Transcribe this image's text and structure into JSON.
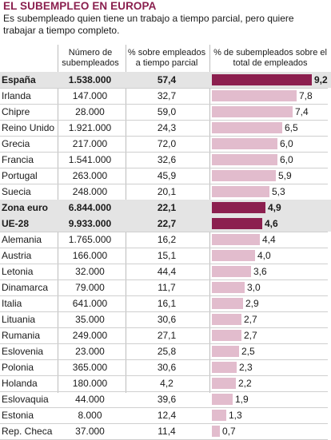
{
  "header": {
    "title": "EL SUBEMPLEO EN EUROPA",
    "subtitle": "Es subempleado quien tiene un trabajo a tiempo parcial, pero quiere trabajar a tiempo completo."
  },
  "colors": {
    "bar_default": "#e2bccd",
    "bar_highlight": "#8c1f4f",
    "row_highlight": "#e4e4e4"
  },
  "chart_data": {
    "type": "table",
    "columns": [
      "",
      "Número de subempleados",
      "% sobre empleados a tiempo parcial",
      "% de subempleados sobre el total de empleados"
    ],
    "bar_max": 9.2,
    "rows": [
      {
        "country": "España",
        "underemployed": "1.538.000",
        "pct_part_time": "57,4",
        "pct_total": "9,2",
        "value": 9.2,
        "highlight": true
      },
      {
        "country": "Irlanda",
        "underemployed": "147.000",
        "pct_part_time": "32,7",
        "pct_total": "7,8",
        "value": 7.8,
        "highlight": false
      },
      {
        "country": "Chipre",
        "underemployed": "28.000",
        "pct_part_time": "59,0",
        "pct_total": "7,4",
        "value": 7.4,
        "highlight": false
      },
      {
        "country": "Reino Unido",
        "underemployed": "1.921.000",
        "pct_part_time": "24,3",
        "pct_total": "6,5",
        "value": 6.5,
        "highlight": false
      },
      {
        "country": "Grecia",
        "underemployed": "217.000",
        "pct_part_time": "72,0",
        "pct_total": "6,0",
        "value": 6.0,
        "highlight": false
      },
      {
        "country": "Francia",
        "underemployed": "1.541.000",
        "pct_part_time": "32,6",
        "pct_total": "6,0",
        "value": 6.0,
        "highlight": false
      },
      {
        "country": "Portugal",
        "underemployed": "263.000",
        "pct_part_time": "45,9",
        "pct_total": "5,9",
        "value": 5.9,
        "highlight": false
      },
      {
        "country": "Suecia",
        "underemployed": "248.000",
        "pct_part_time": "20,1",
        "pct_total": "5,3",
        "value": 5.3,
        "highlight": false
      },
      {
        "country": "Zona euro",
        "underemployed": "6.844.000",
        "pct_part_time": "22,1",
        "pct_total": "4,9",
        "value": 4.9,
        "highlight": true
      },
      {
        "country": "UE-28",
        "underemployed": "9.933.000",
        "pct_part_time": "22,7",
        "pct_total": "4,6",
        "value": 4.6,
        "highlight": true
      },
      {
        "country": "Alemania",
        "underemployed": "1.765.000",
        "pct_part_time": "16,2",
        "pct_total": "4,4",
        "value": 4.4,
        "highlight": false
      },
      {
        "country": "Austria",
        "underemployed": "166.000",
        "pct_part_time": "15,1",
        "pct_total": "4,0",
        "value": 4.0,
        "highlight": false
      },
      {
        "country": "Letonia",
        "underemployed": "32.000",
        "pct_part_time": "44,4",
        "pct_total": "3,6",
        "value": 3.6,
        "highlight": false
      },
      {
        "country": "Dinamarca",
        "underemployed": "79.000",
        "pct_part_time": "11,7",
        "pct_total": "3,0",
        "value": 3.0,
        "highlight": false
      },
      {
        "country": "Italia",
        "underemployed": "641.000",
        "pct_part_time": "16,1",
        "pct_total": "2,9",
        "value": 2.9,
        "highlight": false
      },
      {
        "country": "Lituania",
        "underemployed": "35.000",
        "pct_part_time": "30,6",
        "pct_total": "2,7",
        "value": 2.7,
        "highlight": false
      },
      {
        "country": "Rumania",
        "underemployed": "249.000",
        "pct_part_time": "27,1",
        "pct_total": "2,7",
        "value": 2.7,
        "highlight": false
      },
      {
        "country": "Eslovenia",
        "underemployed": "23.000",
        "pct_part_time": "25,8",
        "pct_total": "2,5",
        "value": 2.5,
        "highlight": false
      },
      {
        "country": "Polonia",
        "underemployed": "365.000",
        "pct_part_time": "30,6",
        "pct_total": "2,3",
        "value": 2.3,
        "highlight": false
      },
      {
        "country": "Holanda",
        "underemployed": "180.000",
        "pct_part_time": "4,2",
        "pct_total": "2,2",
        "value": 2.2,
        "highlight": false
      },
      {
        "country": "Eslovaquia",
        "underemployed": "44.000",
        "pct_part_time": "39,6",
        "pct_total": "1,9",
        "value": 1.9,
        "highlight": false
      },
      {
        "country": "Estonia",
        "underemployed": "8.000",
        "pct_part_time": "12,4",
        "pct_total": "1,3",
        "value": 1.3,
        "highlight": false
      },
      {
        "country": "Rep. Checa",
        "underemployed": "37.000",
        "pct_part_time": "11,4",
        "pct_total": "0,7",
        "value": 0.7,
        "highlight": false
      }
    ]
  }
}
